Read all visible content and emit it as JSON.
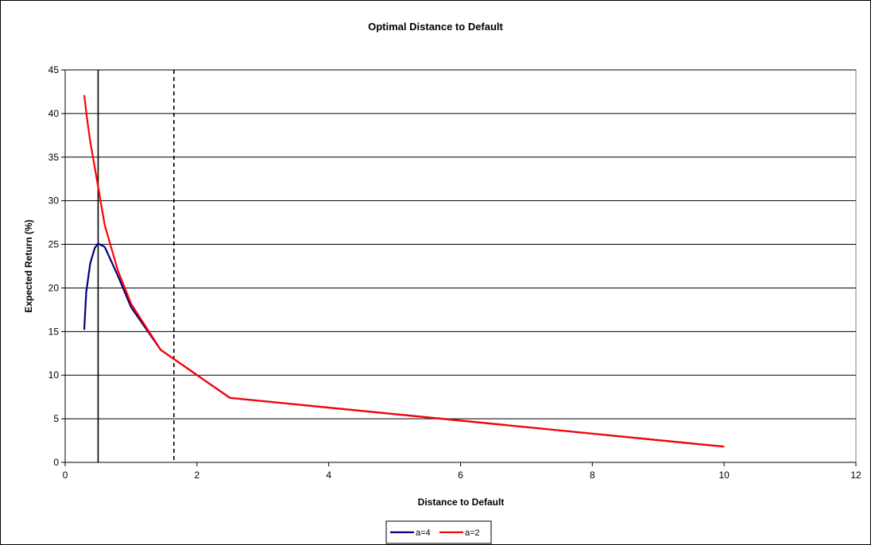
{
  "chart_data": {
    "type": "line",
    "title": "Optimal Distance to Default",
    "xlabel": "Distance to Default",
    "ylabel": "Expected Return (%)",
    "xlim": [
      0,
      12
    ],
    "ylim": [
      0,
      45
    ],
    "x_ticks": [
      0,
      2,
      4,
      6,
      8,
      10,
      12
    ],
    "y_ticks": [
      0,
      5,
      10,
      15,
      20,
      25,
      30,
      35,
      40,
      45
    ],
    "grid": "horizontal",
    "legend": "bottom",
    "series": [
      {
        "name": "a=4",
        "color": "#000080",
        "x": [
          0.29,
          0.32,
          0.38,
          0.45,
          0.5,
          0.6,
          0.8,
          1.0,
          1.45,
          2.5,
          10.0
        ],
        "y": [
          15.2,
          19.5,
          22.8,
          24.6,
          25.1,
          24.7,
          21.4,
          17.8,
          12.9,
          7.4,
          1.8
        ]
      },
      {
        "name": "a=2",
        "color": "#ff0000",
        "x": [
          0.29,
          0.33,
          0.38,
          0.45,
          0.5,
          0.6,
          0.8,
          1.0,
          1.45,
          2.5,
          10.0
        ],
        "y": [
          42.1,
          39.5,
          36.8,
          33.8,
          31.6,
          27.2,
          22.0,
          18.2,
          12.9,
          7.4,
          1.8
        ]
      }
    ],
    "reference_lines": [
      {
        "x": 0.5,
        "style": "solid",
        "color": "#000000"
      },
      {
        "x": 1.65,
        "style": "dashed",
        "color": "#000000"
      }
    ]
  }
}
